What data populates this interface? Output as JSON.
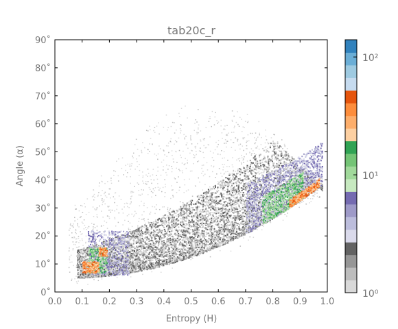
{
  "chart_data": {
    "type": "heatmap",
    "title": "tab20c_r",
    "xlabel": "Entropy (H)",
    "ylabel": "Angle (α)",
    "xlim": [
      0.0,
      1.0
    ],
    "ylim": [
      0,
      90
    ],
    "x_ticks": [
      "0.0",
      "0.1",
      "0.2",
      "0.3",
      "0.4",
      "0.5",
      "0.6",
      "0.7",
      "0.8",
      "0.9",
      "1.0"
    ],
    "y_ticks": [
      "0˚",
      "10˚",
      "20˚",
      "30˚",
      "40˚",
      "50˚",
      "60˚",
      "70˚",
      "80˚",
      "90˚"
    ],
    "colormap": "tab20c_r",
    "colorbar": {
      "scale": "log",
      "range": [
        1,
        140
      ],
      "tick_labels": [
        "10⁰",
        "10¹",
        "10²"
      ],
      "colors": [
        "#d9d9d9",
        "#bdbdbd",
        "#969696",
        "#636363",
        "#dadaeb",
        "#bcbddc",
        "#9e9ac8",
        "#756bb1",
        "#c7e9c0",
        "#a1d99b",
        "#74c476",
        "#31a354",
        "#fdd0a2",
        "#fdae6b",
        "#fd8d3c",
        "#e6550d",
        "#c6dbef",
        "#9ecae1",
        "#6baed6",
        "#3182bd"
      ]
    },
    "regions": [
      {
        "x": 0.13,
        "y": 9,
        "level": "orange"
      },
      {
        "x": 0.17,
        "y": 14,
        "level": "orange"
      },
      {
        "x": 0.15,
        "y": 12,
        "level": "green"
      },
      {
        "x": 0.22,
        "y": 20,
        "level": "purple"
      },
      {
        "x": 0.82,
        "y": 40,
        "level": "green"
      },
      {
        "x": 0.93,
        "y": 38,
        "level": "orange"
      },
      {
        "x": 0.78,
        "y": 48,
        "level": "purple"
      },
      {
        "x": 0.6,
        "y": 58,
        "level": "gray"
      }
    ]
  }
}
